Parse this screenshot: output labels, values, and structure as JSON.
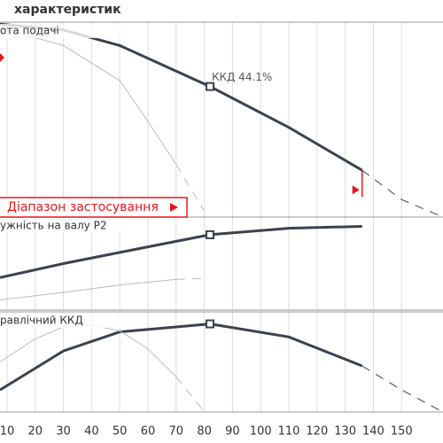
{
  "chart_data": {
    "type": "line",
    "title": "характеристик",
    "grid": true,
    "xlim": [
      7.5,
      164.7
    ],
    "xticks": [
      10,
      20,
      30,
      40,
      50,
      60,
      70,
      80,
      90,
      100,
      110,
      120,
      130,
      140,
      150
    ],
    "panels": [
      {
        "label": "ота подачі",
        "ylim": [
          0,
          100
        ],
        "annotation": "ККД  44.1%",
        "application_range": {
          "label": "Діапазон застосування",
          "end": 136,
          "color": "#e8141b"
        },
        "operating_point": {
          "x": 82,
          "y": 67
        },
        "series": [
          {
            "color": "#3a4250",
            "width": 3,
            "dashed": false,
            "x": [
              7.5,
              30,
              50,
              82,
              110,
              136
            ],
            "values": [
              99,
              96,
              88,
              67,
              46,
              24
            ]
          },
          {
            "color": "#3a4250",
            "width": 1,
            "dashed": true,
            "x": [
              136,
              150,
              164.7
            ],
            "values": [
              24,
              9,
              0
            ]
          },
          {
            "color": "#bdbdbd",
            "width": 1,
            "dashed": false,
            "x": [
              7.5,
              30,
              50,
              60,
              70
            ],
            "values": [
              97,
              88,
              70,
              49,
              27
            ]
          },
          {
            "color": "#bdbdbd",
            "width": 1,
            "dashed": true,
            "x": [
              70,
              80
            ],
            "values": [
              27,
              3
            ]
          }
        ]
      },
      {
        "label": "ужність на валу P2",
        "ylim": [
          0,
          100
        ],
        "operating_point": {
          "x": 82,
          "y": 81
        },
        "series": [
          {
            "color": "#3a4250",
            "width": 3,
            "dashed": false,
            "x": [
              7.5,
              30,
              50,
              82,
              110,
              136
            ],
            "values": [
              35,
              50,
              62,
              81,
              88,
              90
            ]
          },
          {
            "color": "#bdbdbd",
            "width": 1,
            "dashed": false,
            "x": [
              7.5,
              30,
              50,
              70
            ],
            "values": [
              11,
              19,
              27,
              33
            ]
          },
          {
            "color": "#bdbdbd",
            "width": 1,
            "dashed": true,
            "x": [
              70,
              80
            ],
            "values": [
              33,
              34
            ]
          }
        ]
      },
      {
        "label": "равлічний ККД",
        "ylim": [
          0,
          100
        ],
        "operating_point": {
          "x": 82,
          "y": 88
        },
        "series": [
          {
            "color": "#3a4250",
            "width": 3,
            "dashed": false,
            "x": [
              7.5,
              30,
              50,
              82,
              110,
              136
            ],
            "values": [
              22,
              61,
              80,
              88,
              75,
              46
            ]
          },
          {
            "color": "#3a4250",
            "width": 1,
            "dashed": true,
            "x": [
              136,
              150,
              164.7
            ],
            "values": [
              46,
              22,
              0
            ]
          },
          {
            "color": "#bdbdbd",
            "width": 1,
            "dashed": false,
            "x": [
              7.5,
              20,
              30,
              40,
              50,
              60,
              70
            ],
            "values": [
              50,
              73,
              85,
              87,
              81,
              63,
              35
            ]
          },
          {
            "color": "#bdbdbd",
            "width": 1,
            "dashed": true,
            "x": [
              70,
              80
            ],
            "values": [
              35,
              0
            ]
          }
        ]
      }
    ]
  }
}
